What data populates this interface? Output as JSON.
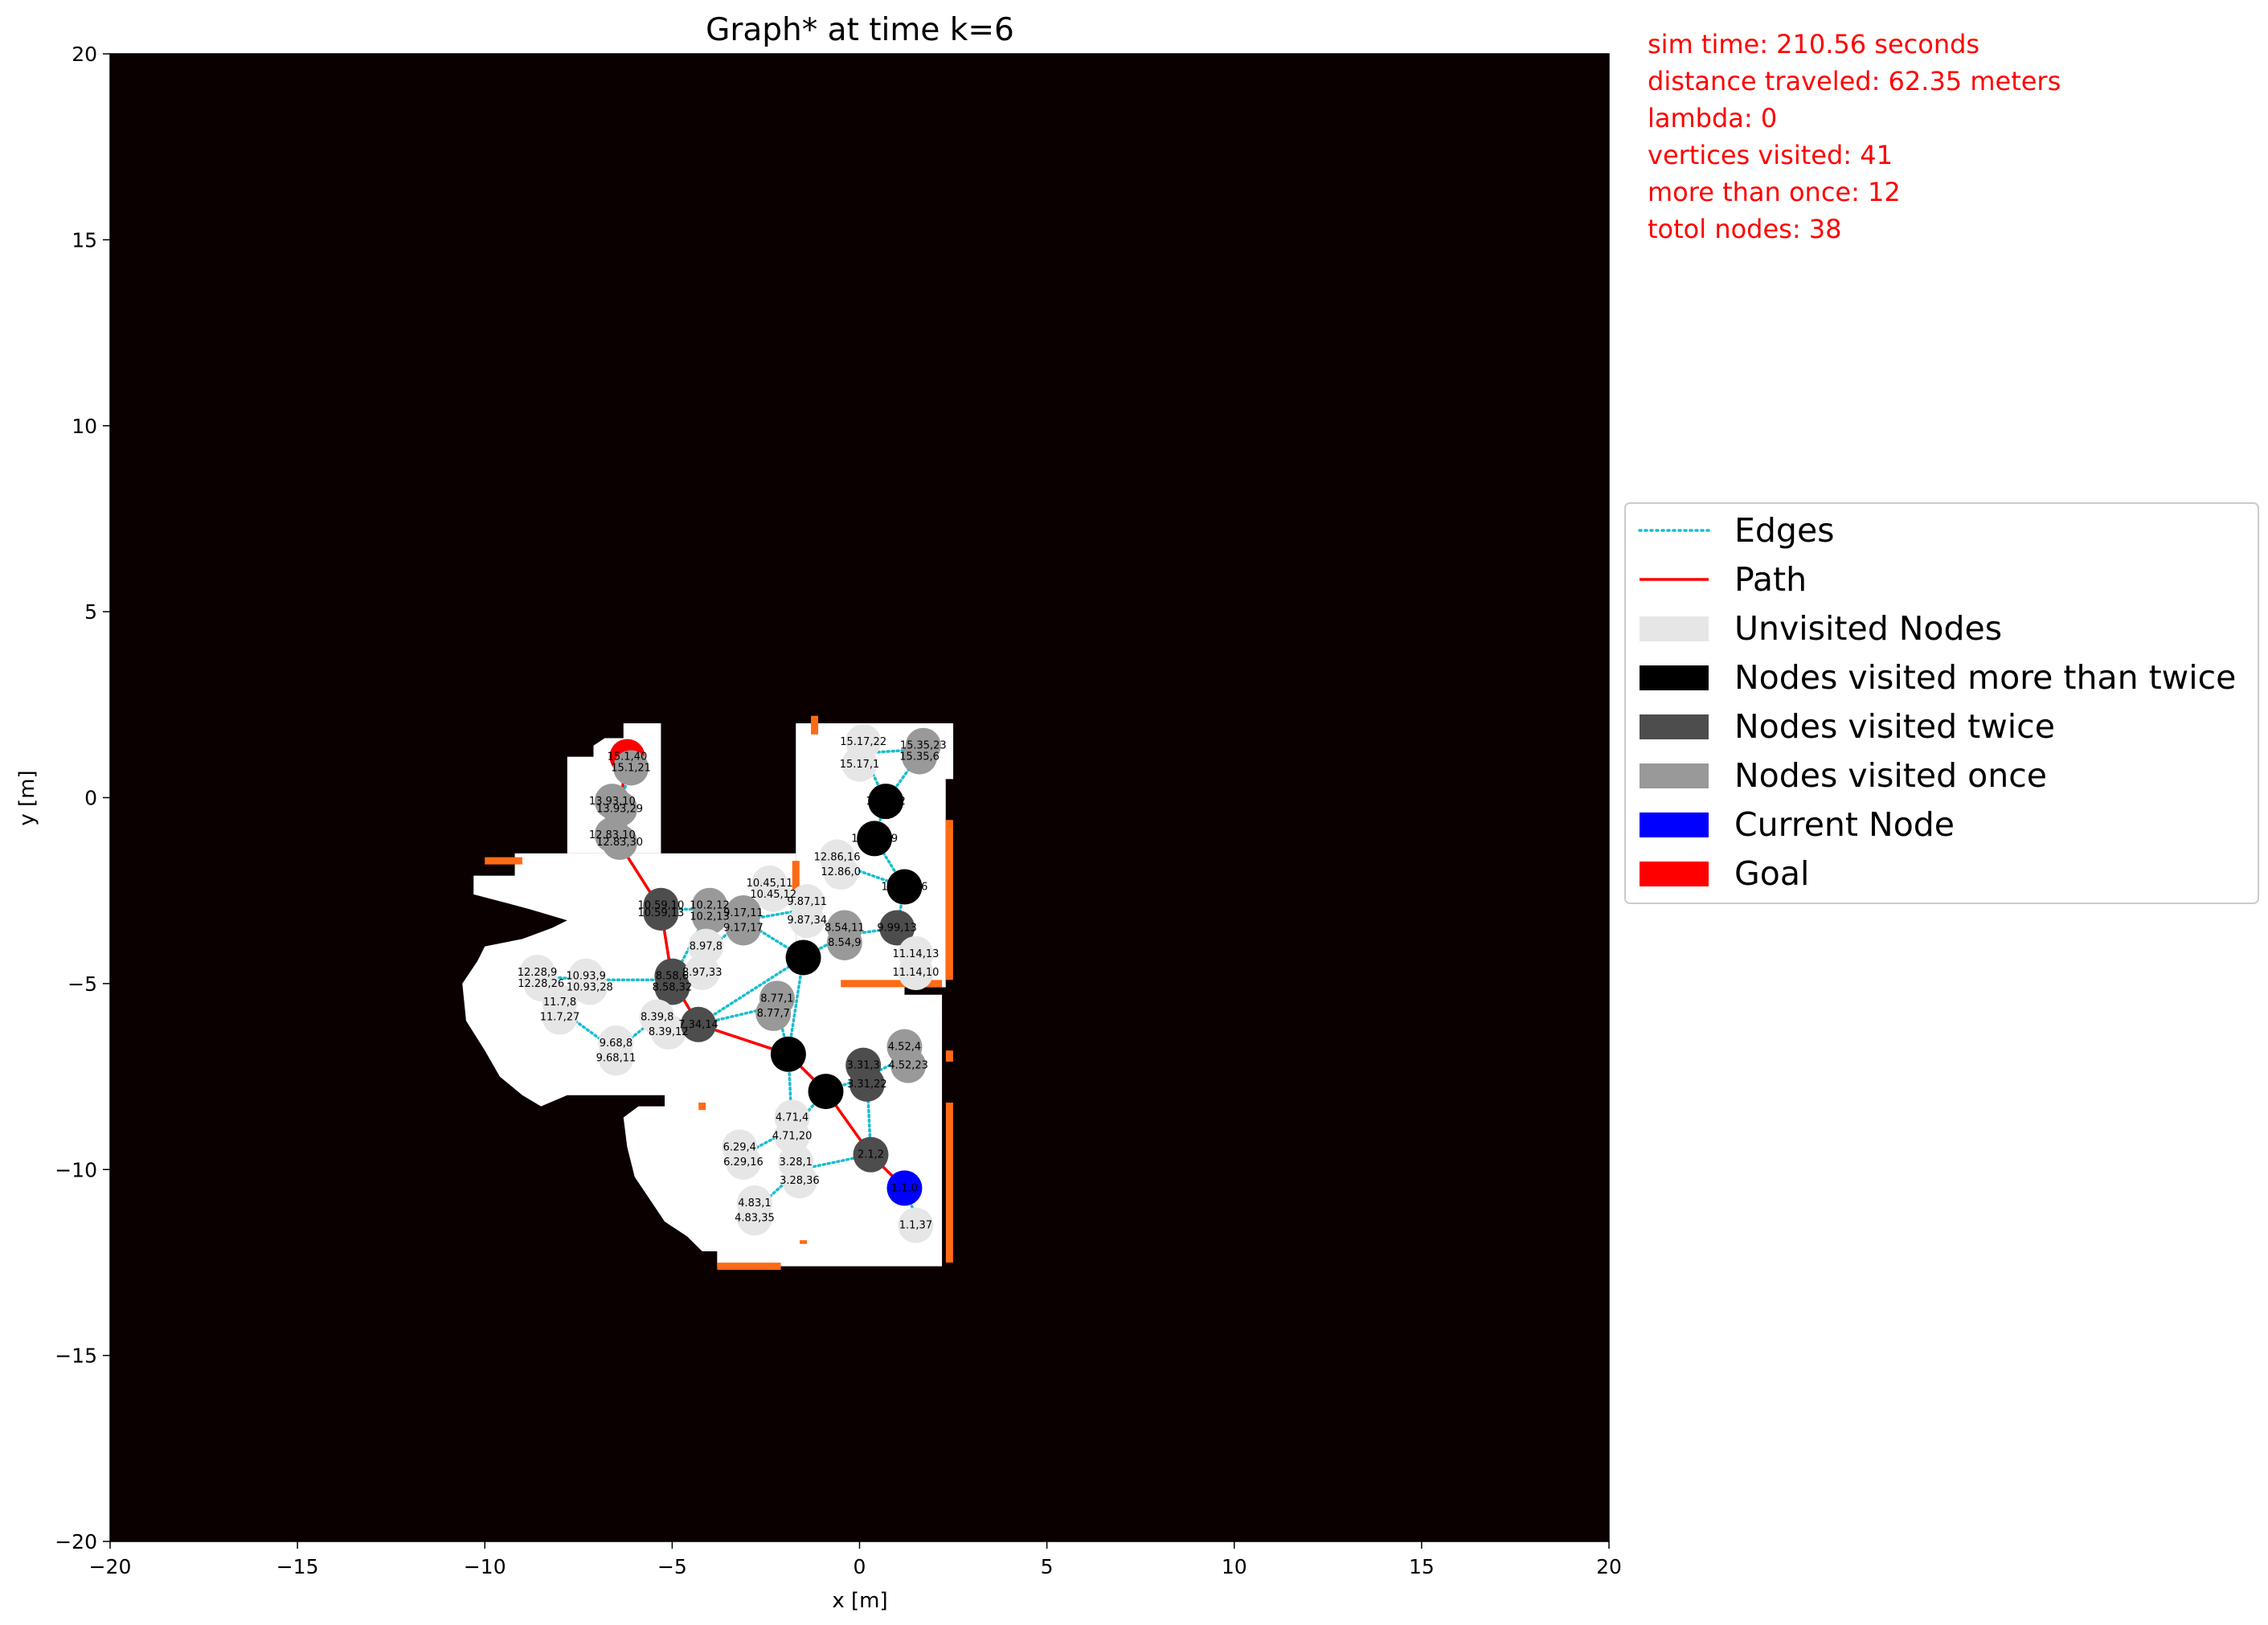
{
  "chart_data": {
    "type": "scatter",
    "title": "Graph* at time k=6",
    "xlabel": "x [m]",
    "ylabel": "y [m]",
    "xlim": [
      -20,
      20
    ],
    "ylim": [
      -20,
      20
    ],
    "xticks": [
      -20,
      -15,
      -10,
      -5,
      0,
      5,
      10,
      15,
      20
    ],
    "yticks": [
      -20,
      -15,
      -10,
      -5,
      0,
      5,
      10,
      15,
      20
    ],
    "xtick_labels": [
      "−20",
      "−15",
      "−10",
      "−5",
      "0",
      "5",
      "10",
      "15",
      "20"
    ],
    "ytick_labels": [
      "−20",
      "−15",
      "−10",
      "−5",
      "0",
      "5",
      "10",
      "15",
      "20"
    ],
    "grid": false,
    "legend_position": "right",
    "info_text": [
      "sim time: 210.56 seconds",
      "distance traveled: 62.35 meters",
      "lambda: 0",
      "vertices visited: 41",
      "more than once: 12",
      "totol nodes: 38"
    ],
    "legend": [
      {
        "label": "Edges",
        "style": "dotted-line",
        "color": "#17becf"
      },
      {
        "label": "Path",
        "style": "line",
        "color": "#ff0000"
      },
      {
        "label": "Unvisited Nodes",
        "style": "patch",
        "color": "#e6e6e6"
      },
      {
        "label": "Nodes visited more than twice",
        "style": "patch",
        "color": "#000000"
      },
      {
        "label": "Nodes visited twice",
        "style": "patch",
        "color": "#4d4d4d"
      },
      {
        "label": "Nodes visited once",
        "style": "patch",
        "color": "#999999"
      },
      {
        "label": "Current Node",
        "style": "patch",
        "color": "#0000ff"
      },
      {
        "label": "Goal",
        "style": "patch",
        "color": "#ff0000"
      }
    ],
    "colors": {
      "background": "#0a0000",
      "free_space": "#ffffff",
      "frontier": "#ff6a14",
      "edges": "#17becf",
      "path": "#ff0000",
      "unvisited": "#e6e6e6",
      "more_than_twice": "#000000",
      "twice": "#4d4d4d",
      "once": "#999999",
      "current": "#0000ff",
      "goal": "#ff0000"
    },
    "free_space_regions": [
      [
        [
          -10.3,
          -2.1
        ],
        [
          -9.2,
          -2.1
        ],
        [
          -9.2,
          -1.5
        ],
        [
          -4.4,
          -1.5
        ],
        [
          -1.7,
          -1.5
        ],
        [
          -1.7,
          -4.6
        ],
        [
          -1.0,
          -4.6
        ],
        [
          -1.0,
          -2.6
        ],
        [
          0.5,
          -2.6
        ],
        [
          0.5,
          -4.8
        ],
        [
          1.2,
          -4.8
        ],
        [
          1.2,
          -5.3
        ],
        [
          2.2,
          -5.3
        ],
        [
          2.2,
          -12.6
        ],
        [
          -3.8,
          -12.6
        ],
        [
          -3.8,
          -12.2
        ],
        [
          -4.2,
          -12.2
        ],
        [
          -4.6,
          -11.8
        ],
        [
          -5.2,
          -11.4
        ],
        [
          -5.6,
          -10.8
        ],
        [
          -6.0,
          -10.2
        ],
        [
          -6.2,
          -9.4
        ],
        [
          -6.3,
          -8.6
        ],
        [
          -5.9,
          -8.3
        ],
        [
          -5.2,
          -8.3
        ],
        [
          -5.2,
          -8.0
        ],
        [
          -7.8,
          -8.0
        ],
        [
          -8.5,
          -8.3
        ],
        [
          -9.0,
          -8.0
        ],
        [
          -9.6,
          -7.5
        ],
        [
          -10.0,
          -6.8
        ],
        [
          -10.5,
          -6.0
        ],
        [
          -10.6,
          -5.0
        ],
        [
          -10.2,
          -4.4
        ],
        [
          -10.0,
          -4.0
        ],
        [
          -9.0,
          -3.8
        ],
        [
          -8.2,
          -3.5
        ],
        [
          -7.8,
          -3.3
        ],
        [
          -8.8,
          -3.0
        ],
        [
          -10.3,
          -2.6
        ]
      ],
      [
        [
          -7.8,
          -1.5
        ],
        [
          -7.8,
          1.1
        ],
        [
          -7.1,
          1.1
        ],
        [
          -7.1,
          1.4
        ],
        [
          -6.8,
          1.6
        ],
        [
          -6.3,
          1.6
        ],
        [
          -6.3,
          2.0
        ],
        [
          -5.3,
          2.0
        ],
        [
          -5.3,
          -1.5
        ]
      ],
      [
        [
          -1.7,
          2.0
        ],
        [
          2.5,
          2.0
        ],
        [
          2.5,
          0.5
        ],
        [
          2.3,
          0.5
        ],
        [
          2.3,
          -5.1
        ],
        [
          1.2,
          -5.1
        ],
        [
          0.2,
          -5.1
        ],
        [
          0.2,
          -4.9
        ],
        [
          -1.7,
          -4.9
        ]
      ]
    ],
    "frontier_segments": [
      [
        [
          -10.0,
          -1.7
        ],
        [
          -9.0,
          -1.7
        ]
      ],
      [
        [
          -1.7,
          -1.7
        ],
        [
          -1.7,
          -2.5
        ]
      ],
      [
        [
          -1.2,
          2.2
        ],
        [
          -1.2,
          1.7
        ]
      ],
      [
        [
          2.4,
          -0.6
        ],
        [
          2.4,
          -4.9
        ]
      ],
      [
        [
          -0.5,
          -5.0
        ],
        [
          2.2,
          -5.0
        ]
      ],
      [
        [
          2.4,
          -6.8
        ],
        [
          2.4,
          -7.1
        ]
      ],
      [
        [
          2.4,
          -8.2
        ],
        [
          2.4,
          -12.5
        ]
      ],
      [
        [
          -3.8,
          -12.6
        ],
        [
          -2.1,
          -12.6
        ]
      ],
      [
        [
          -4.2,
          -8.2
        ],
        [
          -4.2,
          -8.4
        ]
      ],
      [
        [
          -1.5,
          -11.9
        ],
        [
          -1.5,
          -12.0
        ]
      ]
    ],
    "nodes": [
      {
        "label": "15.1,40",
        "x": -6.2,
        "y": 1.1,
        "visits": "goal"
      },
      {
        "label": "15.1,21",
        "x": -6.1,
        "y": 0.8,
        "visits": "once"
      },
      {
        "label": "13.93,10",
        "x": -6.6,
        "y": -0.1,
        "visits": "once"
      },
      {
        "label": "13.93,29",
        "x": -6.4,
        "y": -0.3,
        "visits": "once"
      },
      {
        "label": "12.83,10",
        "x": -6.6,
        "y": -1.0,
        "visits": "once"
      },
      {
        "label": "12.83,30",
        "x": -6.4,
        "y": -1.2,
        "visits": "once"
      },
      {
        "label": "10.59,10",
        "x": -5.3,
        "y": -2.9,
        "visits": "twice"
      },
      {
        "label": "10.59,13",
        "x": -5.3,
        "y": -3.1,
        "visits": "twice"
      },
      {
        "label": "10.2,12",
        "x": -4.0,
        "y": -2.9,
        "visits": "once"
      },
      {
        "label": "10.2,13",
        "x": -4.0,
        "y": -3.2,
        "visits": "once"
      },
      {
        "label": "10.45,11",
        "x": -2.4,
        "y": -2.3,
        "visits": "unvisited"
      },
      {
        "label": "10.45,12",
        "x": -2.3,
        "y": -2.6,
        "visits": "unvisited"
      },
      {
        "label": "9.87,11",
        "x": -1.4,
        "y": -2.8,
        "visits": "unvisited"
      },
      {
        "label": "9.17,11",
        "x": -3.1,
        "y": -3.1,
        "visits": "once"
      },
      {
        "label": "9.17,17",
        "x": -3.1,
        "y": -3.5,
        "visits": "once"
      },
      {
        "label": "9.87,34",
        "x": -1.4,
        "y": -3.3,
        "visits": "unvisited"
      },
      {
        "label": "8.97,8",
        "x": -4.1,
        "y": -4.0,
        "visits": "unvisited"
      },
      {
        "label": "8.54,11",
        "x": -0.4,
        "y": -3.5,
        "visits": "once"
      },
      {
        "label": "8.54,9",
        "x": -0.4,
        "y": -3.9,
        "visits": "once"
      },
      {
        "label": "8.1,1",
        "x": -1.5,
        "y": -4.3,
        "visits": "more"
      },
      {
        "label": "12.86,16",
        "x": -0.6,
        "y": -1.6,
        "visits": "unvisited"
      },
      {
        "label": "12.86,0",
        "x": -0.5,
        "y": -2.0,
        "visits": "unvisited"
      },
      {
        "label": "15.17,22",
        "x": 0.1,
        "y": 1.5,
        "visits": "unvisited"
      },
      {
        "label": "15.17,1",
        "x": 0.0,
        "y": 0.9,
        "visits": "unvisited"
      },
      {
        "label": "15.35,23",
        "x": 1.7,
        "y": 1.4,
        "visits": "once"
      },
      {
        "label": "15.35,6",
        "x": 1.6,
        "y": 1.1,
        "visits": "once"
      },
      {
        "label": "14.1,22",
        "x": 0.7,
        "y": -0.1,
        "visits": "more"
      },
      {
        "label": "13.19,19",
        "x": 0.4,
        "y": -1.1,
        "visits": "more"
      },
      {
        "label": "11.61,16",
        "x": 1.2,
        "y": -2.4,
        "visits": "more"
      },
      {
        "label": "9.99,13",
        "x": 1.0,
        "y": -3.5,
        "visits": "twice"
      },
      {
        "label": "11.14,13",
        "x": 1.5,
        "y": -4.2,
        "visits": "unvisited"
      },
      {
        "label": "11.14,10",
        "x": 1.5,
        "y": -4.7,
        "visits": "unvisited"
      },
      {
        "label": "8.58,6",
        "x": -5.0,
        "y": -4.8,
        "visits": "twice"
      },
      {
        "label": "8.97,33",
        "x": -4.2,
        "y": -4.7,
        "visits": "unvisited"
      },
      {
        "label": "8.58,32",
        "x": -5.0,
        "y": -5.1,
        "visits": "twice"
      },
      {
        "label": "12.28,9",
        "x": -8.6,
        "y": -4.7,
        "visits": "unvisited"
      },
      {
        "label": "12.28,26",
        "x": -8.5,
        "y": -5.0,
        "visits": "unvisited"
      },
      {
        "label": "10.93,9",
        "x": -7.3,
        "y": -4.8,
        "visits": "unvisited"
      },
      {
        "label": "10.93,28",
        "x": -7.2,
        "y": -5.1,
        "visits": "unvisited"
      },
      {
        "label": "11.7,8",
        "x": -8.0,
        "y": -5.5,
        "visits": "unvisited"
      },
      {
        "label": "11.7,27",
        "x": -8.0,
        "y": -5.9,
        "visits": "unvisited"
      },
      {
        "label": "8.39,8",
        "x": -5.4,
        "y": -5.9,
        "visits": "unvisited"
      },
      {
        "label": "8.39,12",
        "x": -5.1,
        "y": -6.3,
        "visits": "unvisited"
      },
      {
        "label": "7.34,14",
        "x": -4.3,
        "y": -6.1,
        "visits": "twice"
      },
      {
        "label": "9.68,8",
        "x": -6.5,
        "y": -6.6,
        "visits": "unvisited"
      },
      {
        "label": "9.68,11",
        "x": -6.5,
        "y": -7.0,
        "visits": "unvisited"
      },
      {
        "label": "8.77,1",
        "x": -2.2,
        "y": -5.4,
        "visits": "once"
      },
      {
        "label": "8.77,7",
        "x": -2.3,
        "y": -5.8,
        "visits": "once"
      },
      {
        "label": "6.1,9",
        "x": -1.9,
        "y": -6.9,
        "visits": "more"
      },
      {
        "label": "4.52,4",
        "x": 1.2,
        "y": -6.7,
        "visits": "once"
      },
      {
        "label": "4.52,23",
        "x": 1.3,
        "y": -7.2,
        "visits": "once"
      },
      {
        "label": "3.31,3",
        "x": 0.1,
        "y": -7.2,
        "visits": "twice"
      },
      {
        "label": "3.31,22",
        "x": 0.2,
        "y": -7.7,
        "visits": "twice"
      },
      {
        "label": "5.1,11",
        "x": -0.9,
        "y": -7.9,
        "visits": "more"
      },
      {
        "label": "4.71,4",
        "x": -1.8,
        "y": -8.6,
        "visits": "unvisited"
      },
      {
        "label": "4.71,20",
        "x": -1.8,
        "y": -9.1,
        "visits": "unvisited"
      },
      {
        "label": "6.29,4",
        "x": -3.2,
        "y": -9.4,
        "visits": "unvisited"
      },
      {
        "label": "6.29,16",
        "x": -3.1,
        "y": -9.8,
        "visits": "unvisited"
      },
      {
        "label": "3.28,1",
        "x": -1.7,
        "y": -9.8,
        "visits": "unvisited"
      },
      {
        "label": "3.28,36",
        "x": -1.6,
        "y": -10.3,
        "visits": "unvisited"
      },
      {
        "label": "2.1,2",
        "x": 0.3,
        "y": -9.6,
        "visits": "twice"
      },
      {
        "label": "4.83,1",
        "x": -2.8,
        "y": -10.9,
        "visits": "unvisited"
      },
      {
        "label": "4.83,35",
        "x": -2.8,
        "y": -11.3,
        "visits": "unvisited"
      },
      {
        "label": "1.1,0",
        "x": 1.2,
        "y": -10.5,
        "visits": "current"
      },
      {
        "label": "1.1,37",
        "x": 1.5,
        "y": -11.5,
        "visits": "unvisited"
      }
    ],
    "edges": [
      [
        [
          -6.2,
          1.1
        ],
        [
          -6.1,
          0.8
        ]
      ],
      [
        [
          -6.1,
          0.8
        ],
        [
          -6.4,
          -0.2
        ]
      ],
      [
        [
          -6.4,
          -0.2
        ],
        [
          -6.5,
          -1.1
        ]
      ],
      [
        [
          -6.5,
          -1.1
        ],
        [
          -5.3,
          -3.0
        ]
      ],
      [
        [
          -5.3,
          -3.0
        ],
        [
          -4.0,
          -3.0
        ]
      ],
      [
        [
          -4.0,
          -3.0
        ],
        [
          -3.1,
          -3.3
        ]
      ],
      [
        [
          -3.1,
          -3.3
        ],
        [
          -2.3,
          -2.4
        ]
      ],
      [
        [
          -3.1,
          -3.3
        ],
        [
          -1.4,
          -3.0
        ]
      ],
      [
        [
          -1.4,
          -3.0
        ],
        [
          -2.3,
          -2.5
        ]
      ],
      [
        [
          -3.1,
          -3.3
        ],
        [
          -1.5,
          -4.3
        ]
      ],
      [
        [
          -1.5,
          -4.3
        ],
        [
          -0.4,
          -3.7
        ]
      ],
      [
        [
          -0.4,
          -3.7
        ],
        [
          1.0,
          -3.5
        ]
      ],
      [
        [
          -0.5,
          -1.8
        ],
        [
          1.2,
          -2.4
        ]
      ],
      [
        [
          1.2,
          -2.4
        ],
        [
          1.0,
          -3.5
        ]
      ],
      [
        [
          1.0,
          -3.5
        ],
        [
          1.5,
          -4.4
        ]
      ],
      [
        [
          1.2,
          -2.4
        ],
        [
          0.4,
          -1.1
        ]
      ],
      [
        [
          0.4,
          -1.1
        ],
        [
          0.7,
          -0.1
        ]
      ],
      [
        [
          0.7,
          -0.1
        ],
        [
          0.1,
          1.2
        ]
      ],
      [
        [
          0.1,
          1.2
        ],
        [
          1.7,
          1.3
        ]
      ],
      [
        [
          0.7,
          -0.1
        ],
        [
          1.7,
          1.3
        ]
      ],
      [
        [
          -5.3,
          -3.0
        ],
        [
          -5.0,
          -4.9
        ]
      ],
      [
        [
          -4.0,
          -3.0
        ],
        [
          -5.0,
          -4.9
        ]
      ],
      [
        [
          -5.0,
          -4.9
        ],
        [
          -7.2,
          -4.9
        ]
      ],
      [
        [
          -7.2,
          -4.9
        ],
        [
          -8.6,
          -4.8
        ]
      ],
      [
        [
          -8.6,
          -4.8
        ],
        [
          -8.0,
          -5.7
        ]
      ],
      [
        [
          -7.2,
          -4.9
        ],
        [
          -8.0,
          -5.7
        ]
      ],
      [
        [
          -8.0,
          -5.7
        ],
        [
          -6.5,
          -6.8
        ]
      ],
      [
        [
          -6.5,
          -6.8
        ],
        [
          -5.4,
          -5.9
        ]
      ],
      [
        [
          -5.0,
          -4.9
        ],
        [
          -4.3,
          -6.1
        ]
      ],
      [
        [
          -4.3,
          -6.1
        ],
        [
          -5.3,
          -6.1
        ]
      ],
      [
        [
          -4.3,
          -6.1
        ],
        [
          -2.2,
          -5.6
        ]
      ],
      [
        [
          -4.3,
          -6.1
        ],
        [
          -1.5,
          -4.3
        ]
      ],
      [
        [
          -5.0,
          -4.9
        ],
        [
          -3.1,
          -3.3
        ]
      ],
      [
        [
          -1.5,
          -4.3
        ],
        [
          -1.9,
          -6.9
        ]
      ],
      [
        [
          -2.2,
          -5.6
        ],
        [
          -1.9,
          -6.9
        ]
      ],
      [
        [
          -1.9,
          -6.9
        ],
        [
          -0.9,
          -7.9
        ]
      ],
      [
        [
          -0.9,
          -7.9
        ],
        [
          0.2,
          -7.5
        ]
      ],
      [
        [
          0.2,
          -7.5
        ],
        [
          1.2,
          -7.0
        ]
      ],
      [
        [
          0.2,
          -7.5
        ],
        [
          0.3,
          -9.6
        ]
      ],
      [
        [
          -0.9,
          -7.9
        ],
        [
          -1.8,
          -8.9
        ]
      ],
      [
        [
          -1.8,
          -8.9
        ],
        [
          -3.1,
          -9.6
        ]
      ],
      [
        [
          -1.9,
          -6.9
        ],
        [
          -1.8,
          -8.9
        ]
      ],
      [
        [
          -1.8,
          -8.9
        ],
        [
          -1.6,
          -10.0
        ]
      ],
      [
        [
          -1.6,
          -10.0
        ],
        [
          0.3,
          -9.6
        ]
      ],
      [
        [
          -1.6,
          -10.0
        ],
        [
          -2.8,
          -11.1
        ]
      ],
      [
        [
          0.3,
          -9.6
        ],
        [
          1.2,
          -10.5
        ]
      ],
      [
        [
          1.2,
          -10.5
        ],
        [
          1.6,
          -11.5
        ]
      ]
    ],
    "path": [
      [
        1.2,
        -10.5
      ],
      [
        0.3,
        -9.6
      ],
      [
        -0.9,
        -7.9
      ],
      [
        -1.9,
        -6.9
      ],
      [
        -4.3,
        -6.1
      ],
      [
        -5.0,
        -4.9
      ],
      [
        -5.3,
        -3.0
      ],
      [
        -6.5,
        -1.1
      ],
      [
        -6.4,
        -0.2
      ],
      [
        -6.2,
        1.1
      ]
    ]
  }
}
